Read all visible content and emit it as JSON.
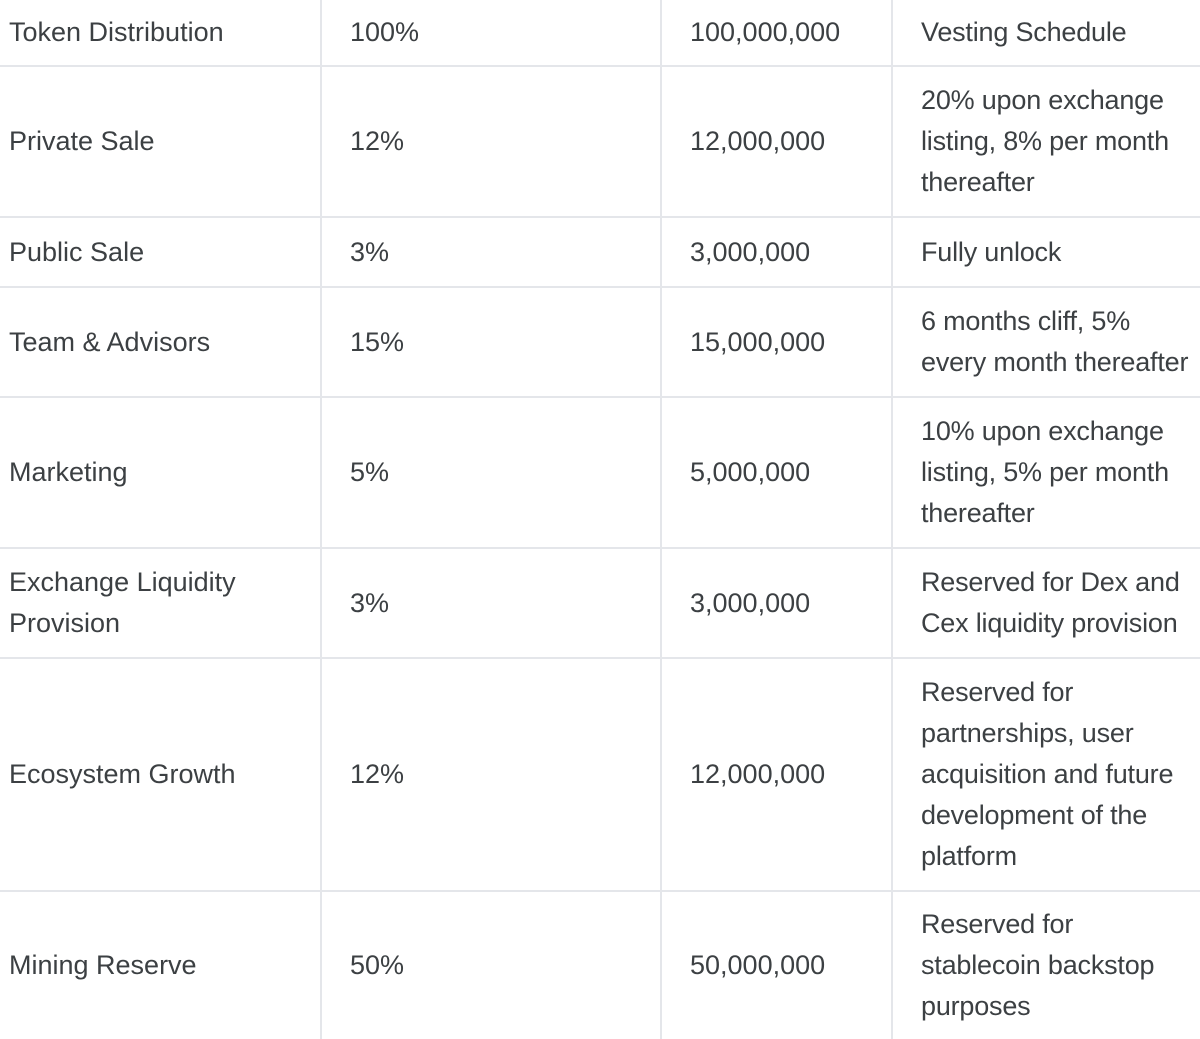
{
  "rows": [
    {
      "category": "Token Distribution",
      "percent": "100%",
      "amount": "100,000,000",
      "vesting": "Vesting Schedule"
    },
    {
      "category": "Private Sale",
      "percent": "12%",
      "amount": "12,000,000",
      "vesting": "20% upon exchange listing, 8% per month thereafter"
    },
    {
      "category": "Public Sale",
      "percent": "3%",
      "amount": "3,000,000",
      "vesting": "Fully unlock"
    },
    {
      "category": "Team & Advisors",
      "percent": "15%",
      "amount": "15,000,000",
      "vesting": "6 months cliff, 5% every month thereafter"
    },
    {
      "category": "Marketing",
      "percent": "5%",
      "amount": "5,000,000",
      "vesting": "10% upon exchange listing, 5% per month thereafter"
    },
    {
      "category": "Exchange Liquidity Provision",
      "percent": "3%",
      "amount": "3,000,000",
      "vesting": "Reserved for Dex and Cex liquidity provision"
    },
    {
      "category": "Ecosystem Growth",
      "percent": "12%",
      "amount": "12,000,000",
      "vesting": "Reserved for partnerships, user acquisition and future development of the platform"
    },
    {
      "category": "Mining Reserve",
      "percent": "50%",
      "amount": "50,000,000",
      "vesting": "Reserved for stablecoin backstop purposes"
    }
  ]
}
